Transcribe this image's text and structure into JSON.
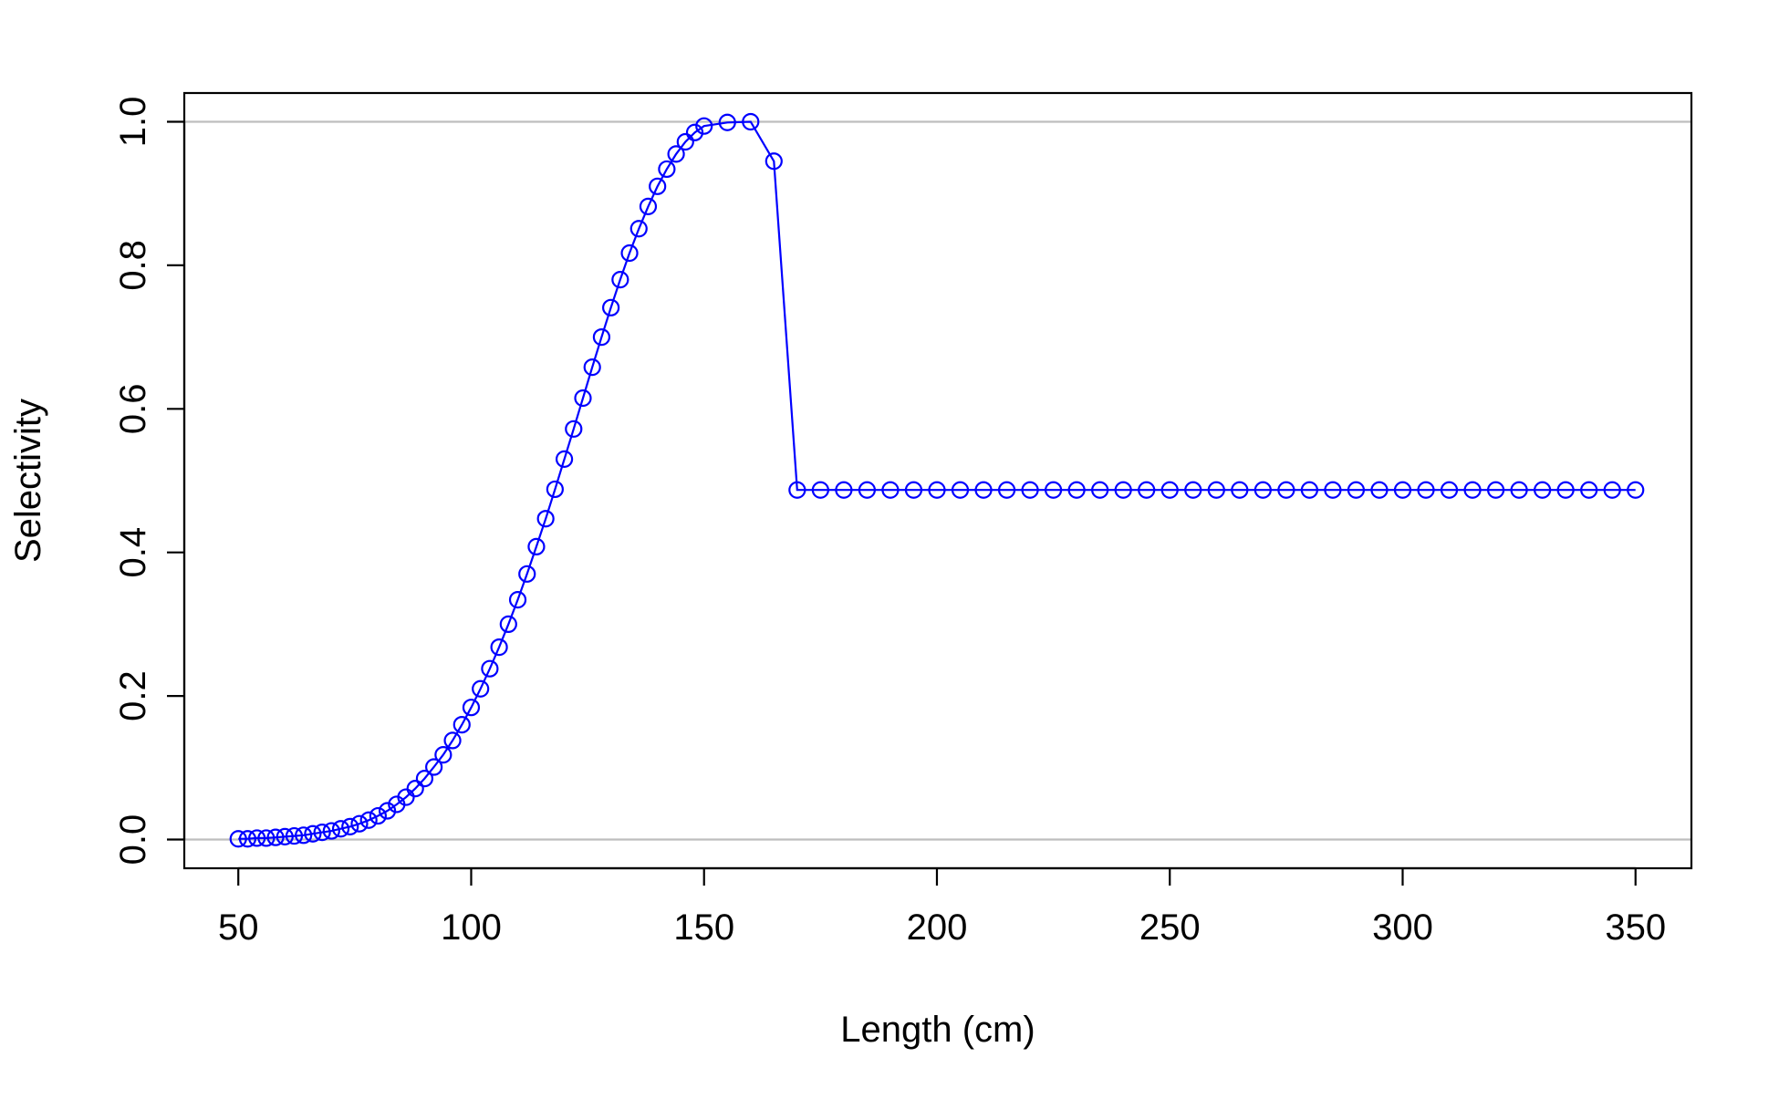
{
  "chart_data": {
    "type": "line",
    "title": "",
    "xlabel": "Length (cm)",
    "ylabel": "Selectivity",
    "xlim": [
      38.4,
      362
    ],
    "ylim": [
      -0.04,
      1.04
    ],
    "xticks": [
      50,
      100,
      150,
      200,
      250,
      300,
      350
    ],
    "yticks": [
      0.0,
      0.2,
      0.4,
      0.6,
      0.8,
      1.0
    ],
    "xtick_labels": [
      "50",
      "100",
      "150",
      "200",
      "250",
      "300",
      "350"
    ],
    "ytick_labels": [
      "0.0",
      "0.2",
      "0.4",
      "0.6",
      "0.8",
      "1.0"
    ],
    "reference_lines_y": [
      0.0,
      1.0
    ],
    "grid": false,
    "legend": "none",
    "markers": "open-circle",
    "series": [
      {
        "color": "#0000ff",
        "x": [
          50,
          52,
          54,
          56,
          58,
          60,
          62,
          64,
          66,
          68,
          70,
          72,
          74,
          76,
          78,
          80,
          82,
          84,
          86,
          88,
          90,
          92,
          94,
          96,
          98,
          100,
          102,
          104,
          106,
          108,
          110,
          112,
          114,
          116,
          118,
          120,
          122,
          124,
          126,
          128,
          130,
          132,
          134,
          136,
          138,
          140,
          142,
          144,
          146,
          148,
          150,
          155,
          160,
          165,
          170,
          175,
          180,
          185,
          190,
          195,
          200,
          205,
          210,
          215,
          220,
          225,
          230,
          235,
          240,
          245,
          250,
          255,
          260,
          265,
          270,
          275,
          280,
          285,
          290,
          295,
          300,
          305,
          310,
          315,
          320,
          325,
          330,
          335,
          340,
          345,
          350
        ],
        "y": [
          0.001,
          0.001,
          0.002,
          0.002,
          0.003,
          0.004,
          0.005,
          0.006,
          0.008,
          0.01,
          0.012,
          0.015,
          0.018,
          0.022,
          0.027,
          0.033,
          0.04,
          0.049,
          0.059,
          0.071,
          0.085,
          0.101,
          0.118,
          0.138,
          0.16,
          0.184,
          0.21,
          0.238,
          0.268,
          0.3,
          0.334,
          0.37,
          0.408,
          0.447,
          0.488,
          0.53,
          0.572,
          0.615,
          0.658,
          0.7,
          0.741,
          0.78,
          0.817,
          0.851,
          0.882,
          0.91,
          0.934,
          0.955,
          0.972,
          0.985,
          0.994,
          0.999,
          1.0,
          0.945,
          0.487,
          0.487,
          0.487,
          0.487,
          0.487,
          0.487,
          0.487,
          0.487,
          0.487,
          0.487,
          0.487,
          0.487,
          0.487,
          0.487,
          0.487,
          0.487,
          0.487,
          0.487,
          0.487,
          0.487,
          0.487,
          0.487,
          0.487,
          0.487,
          0.487,
          0.487,
          0.487,
          0.487,
          0.487,
          0.487,
          0.487,
          0.487,
          0.487,
          0.487,
          0.487,
          0.487,
          0.487
        ]
      }
    ]
  }
}
